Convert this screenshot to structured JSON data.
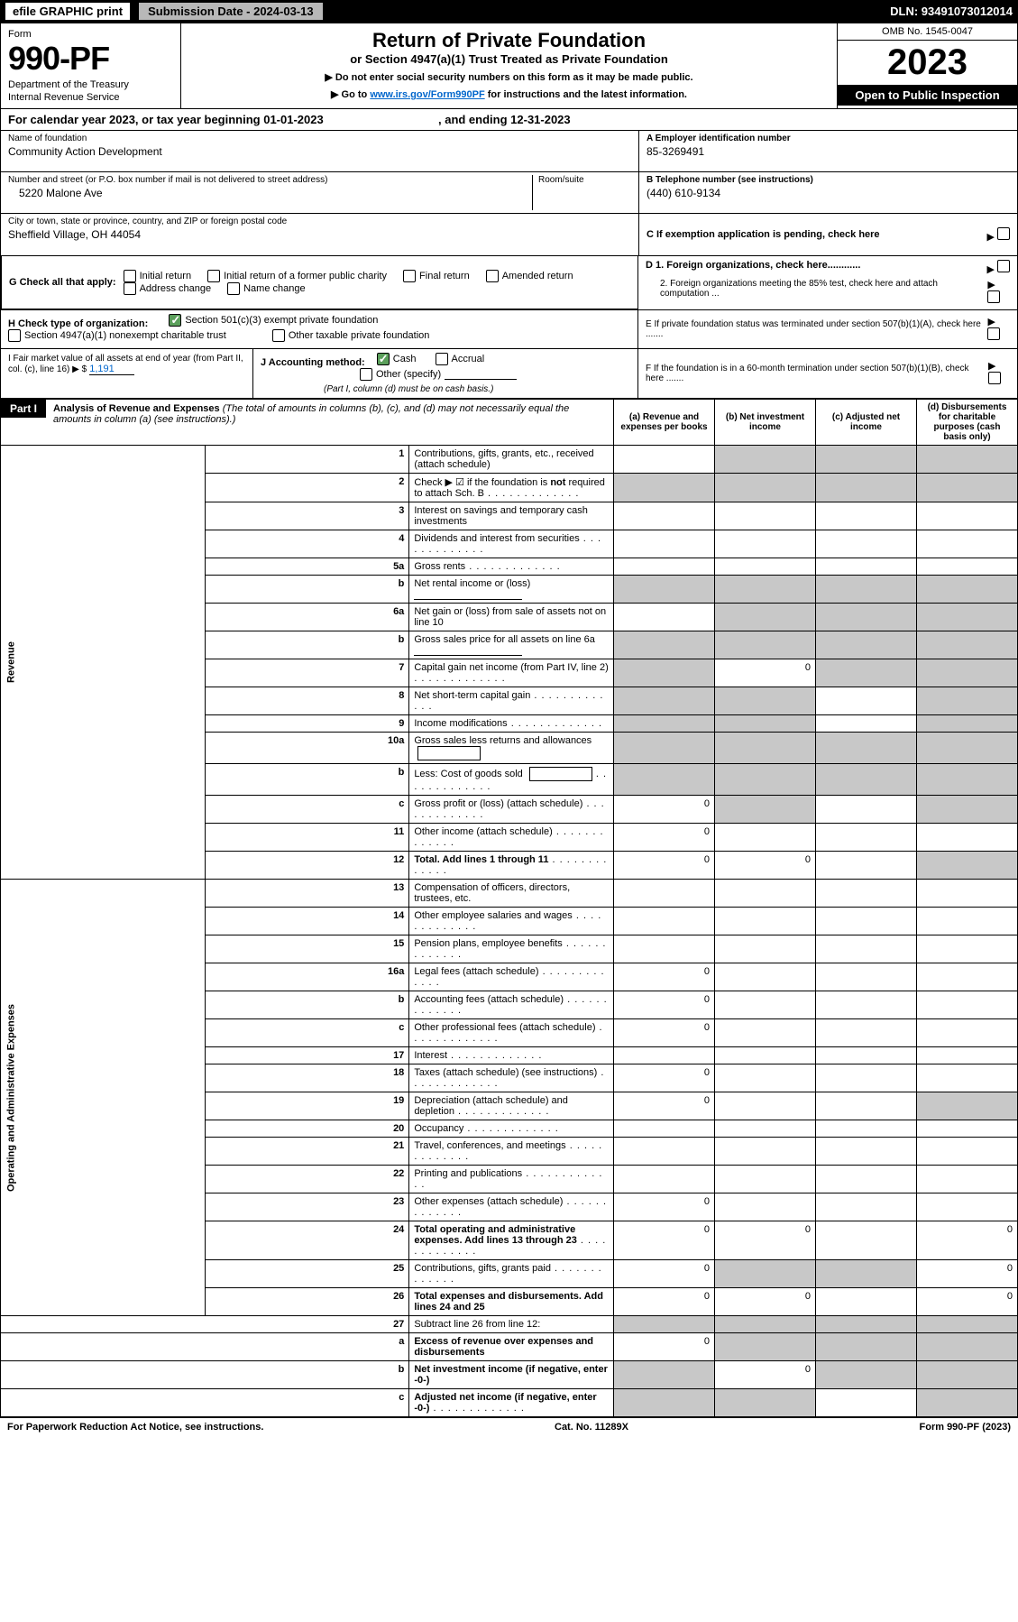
{
  "topbar": {
    "efile": "efile GRAPHIC print",
    "subdate": "Submission Date - 2024-03-13",
    "dln": "DLN: 93491073012014"
  },
  "header": {
    "form_label": "Form",
    "form_num": "990-PF",
    "dept1": "Department of the Treasury",
    "dept2": "Internal Revenue Service",
    "title": "Return of Private Foundation",
    "subtitle": "or Section 4947(a)(1) Trust Treated as Private Foundation",
    "note1": "▶ Do not enter social security numbers on this form as it may be made public.",
    "note2_pre": "▶ Go to ",
    "note2_link": "www.irs.gov/Form990PF",
    "note2_post": " for instructions and the latest information.",
    "omb": "OMB No. 1545-0047",
    "year": "2023",
    "open": "Open to Public Inspection"
  },
  "calyear": {
    "pre": "For calendar year 2023, or tax year beginning 01-01-2023",
    "end": ", and ending 12-31-2023"
  },
  "info": {
    "name_label": "Name of foundation",
    "name": "Community Action Development",
    "addr_label": "Number and street (or P.O. box number if mail is not delivered to street address)",
    "room_label": "Room/suite",
    "addr": "5220 Malone Ave",
    "city_label": "City or town, state or province, country, and ZIP or foreign postal code",
    "city": "Sheffield Village, OH  44054",
    "ein_label": "A Employer identification number",
    "ein": "85-3269491",
    "tel_label": "B Telephone number (see instructions)",
    "tel": "(440) 610-9134",
    "c_label": "C If exemption application is pending, check here"
  },
  "g": {
    "label": "G Check all that apply:",
    "opts": [
      "Initial return",
      "Initial return of a former public charity",
      "Final return",
      "Amended return",
      "Address change",
      "Name change"
    ]
  },
  "d": {
    "d1": "D 1. Foreign organizations, check here............",
    "d2": "2. Foreign organizations meeting the 85% test, check here and attach computation ..."
  },
  "h": {
    "label": "H Check type of organization:",
    "o1": "Section 501(c)(3) exempt private foundation",
    "o2": "Section 4947(a)(1) nonexempt charitable trust",
    "o3": "Other taxable private foundation"
  },
  "e": {
    "label": "E  If private foundation status was terminated under section 507(b)(1)(A), check here ......."
  },
  "i": {
    "label": "I Fair market value of all assets at end of year (from Part II, col. (c), line 16) ▶ $",
    "val": "1,191"
  },
  "j": {
    "label": "J Accounting method:",
    "o1": "Cash",
    "o2": "Accrual",
    "o3": "Other (specify)",
    "note": "(Part I, column (d) must be on cash basis.)"
  },
  "f": {
    "label": "F  If the foundation is in a 60-month termination under section 507(b)(1)(B), check here ......."
  },
  "part1": {
    "title": "Part I",
    "heading": "Analysis of Revenue and Expenses",
    "sub": "(The total of amounts in columns (b), (c), and (d) may not necessarily equal the amounts in column (a) (see instructions).)",
    "cols": {
      "a": "(a)   Revenue and expenses per books",
      "b": "(b)   Net investment income",
      "c": "(c)  Adjusted net income",
      "d": "(d)  Disbursements for charitable purposes (cash basis only)"
    }
  },
  "revenue_label": "Revenue",
  "expense_label": "Operating and Administrative Expenses",
  "rows": [
    {
      "n": "1",
      "d": "Contributions, gifts, grants, etc., received (attach schedule)",
      "g": [
        0,
        1,
        1,
        1
      ]
    },
    {
      "n": "2",
      "d": "Check ▶ ☑ if the foundation is not required to attach Sch. B",
      "dots": 1,
      "g": [
        1,
        1,
        1,
        1
      ],
      "bold_not": true
    },
    {
      "n": "3",
      "d": "Interest on savings and temporary cash investments"
    },
    {
      "n": "4",
      "d": "Dividends and interest from securities",
      "dots": 1
    },
    {
      "n": "5a",
      "d": "Gross rents",
      "dots": 1
    },
    {
      "n": "b",
      "d": "Net rental income or (loss)",
      "line": 1,
      "g": [
        1,
        1,
        1,
        1
      ]
    },
    {
      "n": "6a",
      "d": "Net gain or (loss) from sale of assets not on line 10",
      "g": [
        0,
        1,
        1,
        1
      ]
    },
    {
      "n": "b",
      "d": "Gross sales price for all assets on line 6a",
      "line": 1,
      "g": [
        1,
        1,
        1,
        1
      ]
    },
    {
      "n": "7",
      "d": "Capital gain net income (from Part IV, line 2)",
      "dots": 1,
      "g": [
        1,
        0,
        1,
        1
      ],
      "b": "0"
    },
    {
      "n": "8",
      "d": "Net short-term capital gain",
      "dots": 1,
      "g": [
        1,
        1,
        0,
        1
      ]
    },
    {
      "n": "9",
      "d": "Income modifications",
      "dots": 1,
      "g": [
        1,
        1,
        0,
        1
      ]
    },
    {
      "n": "10a",
      "d": "Gross sales less returns and allowances",
      "box": 1,
      "g": [
        1,
        1,
        1,
        1
      ]
    },
    {
      "n": "b",
      "d": "Less: Cost of goods sold",
      "dots": 1,
      "box": 1,
      "g": [
        1,
        1,
        1,
        1
      ]
    },
    {
      "n": "c",
      "d": "Gross profit or (loss) (attach schedule)",
      "dots": 1,
      "a": "0",
      "g": [
        0,
        1,
        0,
        1
      ]
    },
    {
      "n": "11",
      "d": "Other income (attach schedule)",
      "dots": 1,
      "a": "0"
    },
    {
      "n": "12",
      "d": "Total. Add lines 1 through 11",
      "dots": 1,
      "bold": 1,
      "a": "0",
      "b": "0",
      "g": [
        0,
        0,
        0,
        1
      ]
    }
  ],
  "exp_rows": [
    {
      "n": "13",
      "d": "Compensation of officers, directors, trustees, etc."
    },
    {
      "n": "14",
      "d": "Other employee salaries and wages",
      "dots": 1
    },
    {
      "n": "15",
      "d": "Pension plans, employee benefits",
      "dots": 1
    },
    {
      "n": "16a",
      "d": "Legal fees (attach schedule)",
      "dots": 1,
      "a": "0"
    },
    {
      "n": "b",
      "d": "Accounting fees (attach schedule)",
      "dots": 1,
      "a": "0"
    },
    {
      "n": "c",
      "d": "Other professional fees (attach schedule)",
      "dots": 1,
      "a": "0"
    },
    {
      "n": "17",
      "d": "Interest",
      "dots": 1
    },
    {
      "n": "18",
      "d": "Taxes (attach schedule) (see instructions)",
      "dots": 1,
      "a": "0"
    },
    {
      "n": "19",
      "d": "Depreciation (attach schedule) and depletion",
      "dots": 1,
      "a": "0",
      "g": [
        0,
        0,
        0,
        1
      ]
    },
    {
      "n": "20",
      "d": "Occupancy",
      "dots": 1
    },
    {
      "n": "21",
      "d": "Travel, conferences, and meetings",
      "dots": 1
    },
    {
      "n": "22",
      "d": "Printing and publications",
      "dots": 1
    },
    {
      "n": "23",
      "d": "Other expenses (attach schedule)",
      "dots": 1,
      "a": "0"
    },
    {
      "n": "24",
      "d": "Total operating and administrative expenses. Add lines 13 through 23",
      "dots": 1,
      "bold": 1,
      "a": "0",
      "b": "0",
      "dd": "0"
    },
    {
      "n": "25",
      "d": "Contributions, gifts, grants paid",
      "dots": 1,
      "a": "0",
      "g": [
        0,
        1,
        1,
        0
      ],
      "dd": "0"
    },
    {
      "n": "26",
      "d": "Total expenses and disbursements. Add lines 24 and 25",
      "bold": 1,
      "a": "0",
      "b": "0",
      "dd": "0"
    }
  ],
  "bottom_rows": [
    {
      "n": "27",
      "d": "Subtract line 26 from line 12:",
      "g": [
        1,
        1,
        1,
        1
      ]
    },
    {
      "n": "a",
      "d": "Excess of revenue over expenses and disbursements",
      "bold": 1,
      "a": "0",
      "g": [
        0,
        1,
        1,
        1
      ]
    },
    {
      "n": "b",
      "d": "Net investment income (if negative, enter -0-)",
      "bold": 1,
      "g": [
        1,
        0,
        1,
        1
      ],
      "b": "0"
    },
    {
      "n": "c",
      "d": "Adjusted net income (if negative, enter -0-)",
      "dots": 1,
      "bold": 1,
      "g": [
        1,
        1,
        0,
        1
      ]
    }
  ],
  "footer": {
    "left": "For Paperwork Reduction Act Notice, see instructions.",
    "mid": "Cat. No. 11289X",
    "right": "Form 990-PF (2023)"
  }
}
